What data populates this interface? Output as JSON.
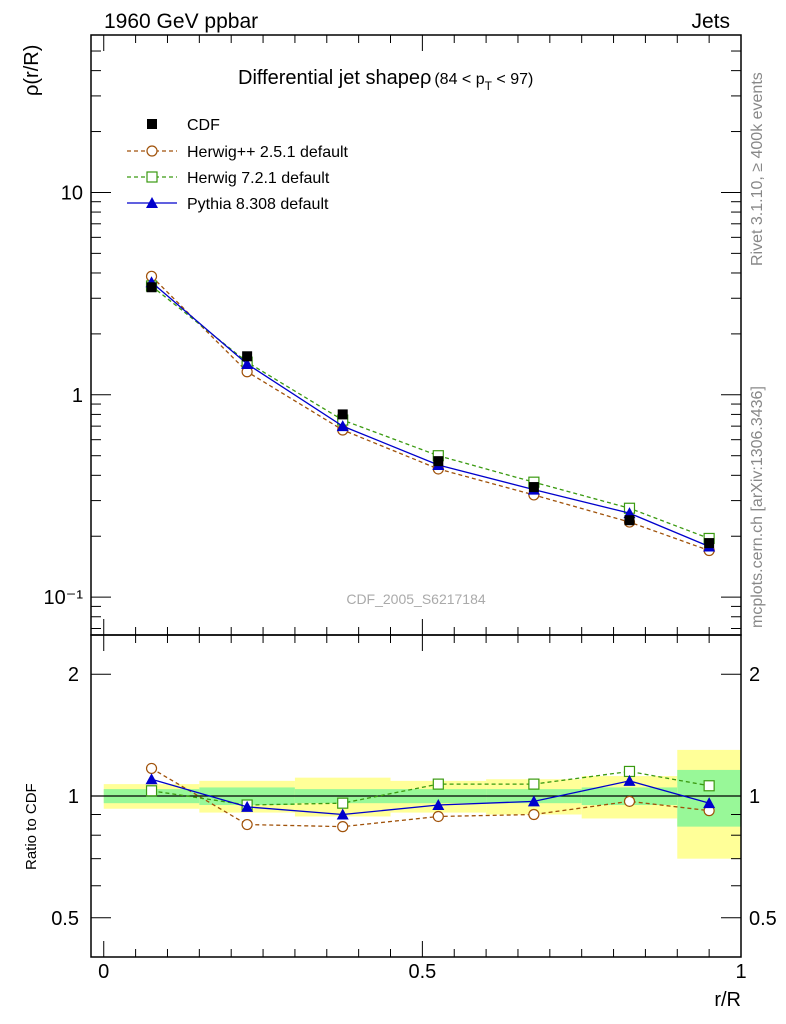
{
  "header": {
    "left": "1960 GeV ppbar",
    "right": "Jets",
    "side_top": "Rivet 3.1.10, ≥ 400k events",
    "side_bottom": "mcplots.cern.ch [arXiv:1306.3436]"
  },
  "chart_data": {
    "type": "line",
    "title": "Differential jet shapeρ",
    "title_sub": "(84 < p",
    "title_sub_index": "T",
    "title_sub_end": " < 97)",
    "watermark": "CDF_2005_S6217184",
    "xlabel": "r/R",
    "ylabel": "ρ(r/R)",
    "ratio_ylabel": "Ratio to CDF",
    "xlim": [
      -0.02,
      1.0
    ],
    "ylim": [
      0.065,
      60
    ],
    "ratio_ylim": [
      0.4,
      2.5
    ],
    "x_tick_labels": [
      "0",
      "0.5",
      "1"
    ],
    "y_tick_labels": [
      "10⁻¹",
      "1",
      "10"
    ],
    "ratio_tick_labels": [
      "0.5",
      "1",
      "2"
    ],
    "x": [
      0.075,
      0.225,
      0.375,
      0.525,
      0.675,
      0.825,
      0.95
    ],
    "data": {
      "name": "CDF",
      "values": [
        3.4,
        1.55,
        0.8,
        0.47,
        0.35,
        0.24,
        0.185
      ],
      "errors": [
        0.1,
        0.05,
        0.03,
        0.02,
        0.015,
        0.012,
        0.01
      ]
    },
    "series": [
      {
        "name": "Herwig++ 2.5.1 default",
        "color": "#a0520a",
        "marker": "open-circle",
        "dash": true,
        "values": [
          3.85,
          1.3,
          0.67,
          0.43,
          0.32,
          0.235,
          0.17
        ],
        "ratio": [
          1.17,
          0.85,
          0.84,
          0.89,
          0.9,
          0.97,
          0.92
        ]
      },
      {
        "name": "Herwig 7.2.1 default",
        "color": "#3a9a10",
        "marker": "open-square",
        "dash": true,
        "values": [
          3.45,
          1.45,
          0.75,
          0.5,
          0.37,
          0.275,
          0.195
        ],
        "ratio": [
          1.03,
          0.95,
          0.96,
          1.07,
          1.07,
          1.15,
          1.06
        ]
      },
      {
        "name": "Pythia 8.308 default",
        "color": "#0000cc",
        "marker": "filled-triangle",
        "dash": false,
        "values": [
          3.6,
          1.42,
          0.7,
          0.45,
          0.34,
          0.26,
          0.178
        ],
        "ratio": [
          1.1,
          0.94,
          0.9,
          0.95,
          0.97,
          1.09,
          0.96
        ]
      }
    ],
    "bands": {
      "bins": [
        [
          0.0,
          0.15
        ],
        [
          0.15,
          0.3
        ],
        [
          0.3,
          0.45
        ],
        [
          0.45,
          0.6
        ],
        [
          0.6,
          0.75
        ],
        [
          0.75,
          0.9
        ],
        [
          0.9,
          1.0
        ]
      ],
      "stat": [
        0.04,
        0.05,
        0.04,
        0.04,
        0.04,
        0.05,
        0.16
      ],
      "total": [
        0.07,
        0.09,
        0.11,
        0.09,
        0.1,
        0.12,
        0.3
      ]
    },
    "colors": {
      "stat_band": "#98f898",
      "total_band": "#ffff98",
      "data": "#000000"
    }
  }
}
